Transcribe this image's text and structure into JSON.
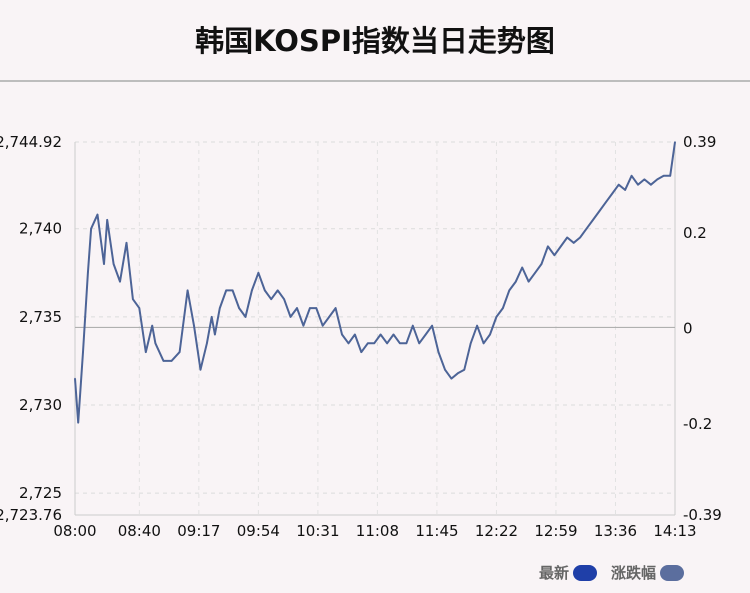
{
  "chart_data": {
    "type": "line",
    "title": "韩国KOSPI指数当日走势图",
    "x_ticks": [
      "08:00",
      "08:40",
      "09:17",
      "09:54",
      "10:31",
      "11:08",
      "11:45",
      "12:22",
      "12:59",
      "13:36",
      "14:13"
    ],
    "y_left": {
      "min": 2723.76,
      "max": 2744.92,
      "tick_labels": [
        "2,744.92",
        "2,740",
        "2,735",
        "2,730",
        "2,725",
        "2,723.76"
      ],
      "tick_values": [
        2744.92,
        2740,
        2735,
        2730,
        2725,
        2723.76
      ]
    },
    "y_right": {
      "min": -0.39,
      "max": 0.39,
      "tick_labels": [
        "0.39",
        "0.2",
        "0",
        "-0.2",
        "-0.39"
      ],
      "tick_values": [
        0.39,
        0.2,
        0,
        -0.2,
        -0.39
      ]
    },
    "baseline": 2734.4,
    "grid": true,
    "legend_position": "bottom-right",
    "series": [
      {
        "name": "最新",
        "color": "#1f3fa8",
        "x": [
          "08:00",
          "08:02",
          "08:05",
          "08:08",
          "08:10",
          "08:14",
          "08:18",
          "08:20",
          "08:24",
          "08:28",
          "08:32",
          "08:36",
          "08:40",
          "08:44",
          "08:48",
          "08:50",
          "08:55",
          "09:00",
          "09:05",
          "09:10",
          "09:14",
          "09:18",
          "09:22",
          "09:25",
          "09:27",
          "09:30",
          "09:34",
          "09:38",
          "09:42",
          "09:46",
          "09:50",
          "09:54",
          "09:58",
          "10:02",
          "10:06",
          "10:10",
          "10:14",
          "10:18",
          "10:22",
          "10:26",
          "10:30",
          "10:34",
          "10:38",
          "10:42",
          "10:46",
          "10:50",
          "10:54",
          "10:58",
          "11:02",
          "11:06",
          "11:10",
          "11:14",
          "11:18",
          "11:22",
          "11:26",
          "11:30",
          "11:34",
          "11:38",
          "11:42",
          "11:46",
          "11:50",
          "11:54",
          "11:58",
          "12:02",
          "12:06",
          "12:10",
          "12:14",
          "12:18",
          "12:22",
          "12:26",
          "12:30",
          "12:34",
          "12:38",
          "12:42",
          "12:46",
          "12:50",
          "12:54",
          "12:58",
          "13:02",
          "13:06",
          "13:10",
          "13:14",
          "13:18",
          "13:22",
          "13:26",
          "13:30",
          "13:34",
          "13:38",
          "13:42",
          "13:46",
          "13:50",
          "13:54",
          "13:58",
          "14:02",
          "14:06",
          "14:10",
          "14:13"
        ],
        "y": [
          2731.5,
          2729.0,
          2733.0,
          2737.5,
          2740.0,
          2740.8,
          2738.0,
          2740.5,
          2738.0,
          2737.0,
          2739.2,
          2736.0,
          2735.5,
          2733.0,
          2734.5,
          2733.5,
          2732.5,
          2732.5,
          2733.0,
          2736.5,
          2734.5,
          2732.0,
          2733.5,
          2735.0,
          2734.0,
          2735.5,
          2736.5,
          2736.5,
          2735.5,
          2735.0,
          2736.5,
          2737.5,
          2736.5,
          2736.0,
          2736.5,
          2736.0,
          2735.0,
          2735.5,
          2734.5,
          2735.5,
          2735.5,
          2734.5,
          2735.0,
          2735.5,
          2734.0,
          2733.5,
          2734.0,
          2733.0,
          2733.5,
          2733.5,
          2734.0,
          2733.5,
          2734.0,
          2733.5,
          2733.5,
          2734.5,
          2733.5,
          2734.0,
          2734.5,
          2733.0,
          2732.0,
          2731.5,
          2731.8,
          2732.0,
          2733.5,
          2734.5,
          2733.5,
          2734.0,
          2735.0,
          2735.5,
          2736.5,
          2737.0,
          2737.8,
          2737.0,
          2737.5,
          2738.0,
          2739.0,
          2738.5,
          2739.0,
          2739.5,
          2739.2,
          2739.5,
          2740.0,
          2740.5,
          2741.0,
          2741.5,
          2742.0,
          2742.5,
          2742.2,
          2743.0,
          2742.5,
          2742.8,
          2742.5,
          2742.8,
          2743.0,
          2743.0,
          2744.92
        ]
      },
      {
        "name": "涨跌幅",
        "color": "#5b6e9e",
        "y_axis": "right"
      }
    ]
  }
}
